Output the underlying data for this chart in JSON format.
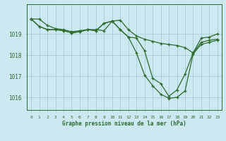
{
  "title": "Graphe pression niveau de la mer (hPa)",
  "background_color": "#cce8f0",
  "grid_color": "#a8cdd6",
  "line_color": "#2d6b2d",
  "xlim": [
    -0.5,
    23.5
  ],
  "ylim": [
    1015.4,
    1020.4
  ],
  "yticks": [
    1016,
    1017,
    1018,
    1019
  ],
  "xtick_labels": [
    "0",
    "1",
    "2",
    "3",
    "4",
    "5",
    "6",
    "7",
    "8",
    "9",
    "10",
    "11",
    "12",
    "13",
    "14",
    "15",
    "16",
    "17",
    "18",
    "19",
    "20",
    "21",
    "22",
    "23"
  ],
  "series": [
    {
      "x": [
        0,
        1,
        2,
        3,
        4,
        5,
        6,
        7,
        8,
        9,
        10,
        11,
        12,
        13,
        14,
        15,
        16,
        17,
        18,
        19,
        20,
        21,
        22,
        23
      ],
      "y": [
        1019.7,
        1019.7,
        1019.4,
        1019.25,
        1019.2,
        1019.1,
        1019.15,
        1019.2,
        1019.2,
        1019.15,
        1019.6,
        1019.65,
        1019.2,
        1018.9,
        1018.75,
        1018.65,
        1018.55,
        1018.5,
        1018.45,
        1018.35,
        1018.1,
        1018.6,
        1018.7,
        1018.75
      ]
    },
    {
      "x": [
        0,
        1,
        2,
        3,
        4,
        5,
        6,
        7,
        8,
        9,
        10,
        11,
        12,
        13,
        14,
        15,
        16,
        17,
        18,
        19,
        20,
        21,
        22,
        23
      ],
      "y": [
        1019.7,
        1019.35,
        1019.2,
        1019.2,
        1019.15,
        1019.05,
        1019.1,
        1019.2,
        1019.15,
        1019.5,
        1019.6,
        1019.2,
        1018.85,
        1018.8,
        1018.2,
        1016.9,
        1016.65,
        1016.05,
        1016.35,
        1017.1,
        1018.1,
        1018.8,
        1018.85,
        1019.0
      ]
    },
    {
      "x": [
        0,
        1,
        2,
        3,
        4,
        5,
        6,
        7,
        8,
        9,
        10,
        11,
        12,
        13,
        14,
        15,
        16,
        17,
        18,
        19,
        20,
        21,
        22,
        23
      ],
      "y": [
        1019.7,
        1019.35,
        1019.2,
        1019.2,
        1019.15,
        1019.05,
        1019.1,
        1019.2,
        1019.15,
        1019.5,
        1019.6,
        1019.2,
        1018.85,
        1018.1,
        1017.05,
        1016.55,
        1016.15,
        1015.95,
        1016.0,
        1016.3,
        1018.05,
        1018.5,
        1018.6,
        1018.7
      ]
    }
  ]
}
